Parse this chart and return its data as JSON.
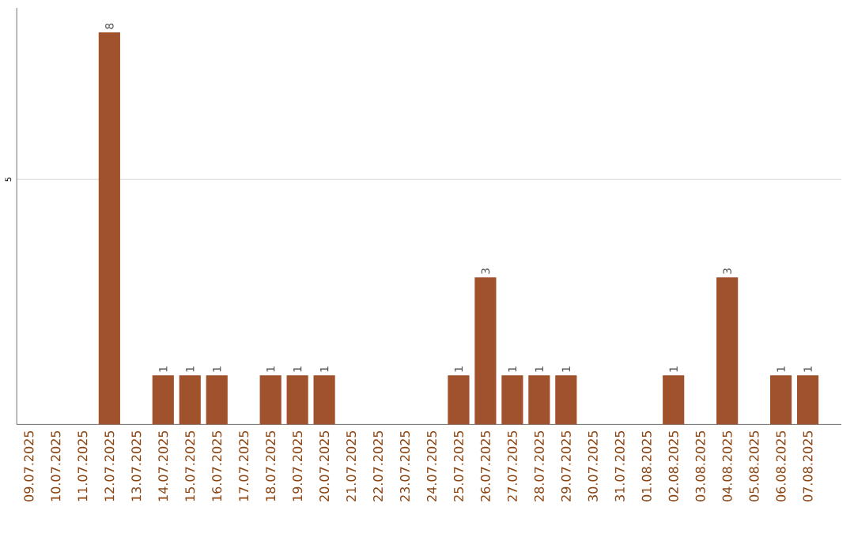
{
  "chart_data": {
    "type": "bar",
    "categories": [
      "09.07.2025",
      "10.07.2025",
      "11.07.2025",
      "12.07.2025",
      "13.07.2025",
      "14.07.2025",
      "15.07.2025",
      "16.07.2025",
      "17.07.2025",
      "18.07.2025",
      "19.07.2025",
      "20.07.2025",
      "21.07.2025",
      "22.07.2025",
      "23.07.2025",
      "24.07.2025",
      "25.07.2025",
      "26.07.2025",
      "27.07.2025",
      "28.07.2025",
      "29.07.2025",
      "30.07.2025",
      "31.07.2025",
      "01.08.2025",
      "02.08.2025",
      "03.08.2025",
      "04.08.2025",
      "05.08.2025",
      "06.08.2025",
      "07.08.2025"
    ],
    "values": [
      0,
      0,
      0,
      8,
      0,
      1,
      1,
      1,
      0,
      1,
      1,
      1,
      0,
      0,
      0,
      0,
      1,
      3,
      1,
      1,
      1,
      0,
      0,
      0,
      1,
      0,
      3,
      0,
      1,
      1
    ],
    "value_labels": [
      null,
      null,
      null,
      "8",
      null,
      "1",
      "1",
      "1",
      null,
      "1",
      "1",
      "1",
      null,
      null,
      null,
      null,
      "1",
      "3",
      "1",
      "1",
      "1",
      null,
      null,
      null,
      "1",
      null,
      "3",
      null,
      "1",
      "1"
    ],
    "color": "#a0522d",
    "ylim": [
      0,
      8.5
    ],
    "yticks": [
      5
    ],
    "grid": "y"
  }
}
